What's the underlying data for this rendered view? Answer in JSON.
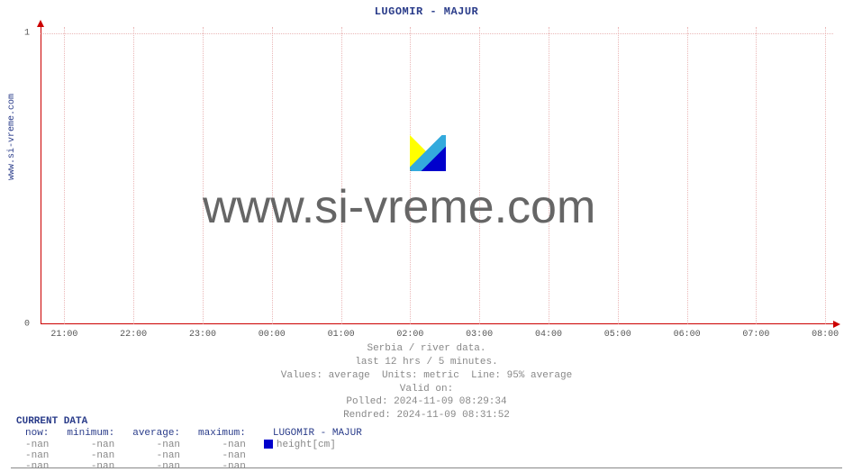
{
  "side_label": "www.si-vreme.com",
  "chart": {
    "type": "line",
    "title": "LUGOMIR -  MAJUR",
    "title_color": "#2a3c8a",
    "title_fontsize": 12,
    "background_color": "#ffffff",
    "axis_color": "#cc0000",
    "grid_color": "#d88",
    "ylim": [
      0,
      1
    ],
    "yticks": [
      0,
      1
    ],
    "ytick_labels": [
      "0",
      "1"
    ],
    "xtick_labels": [
      "21:00",
      "22:00",
      "23:00",
      "00:00",
      "01:00",
      "02:00",
      "03:00",
      "04:00",
      "05:00",
      "06:00",
      "07:00",
      "08:00"
    ],
    "xtick_count": 12,
    "series": [],
    "watermark_text": "www.si-vreme.com",
    "watermark_color": "#666666",
    "watermark_fontsize": 52,
    "logo_colors": {
      "yellow": "#ffff00",
      "blue": "#0000cc",
      "cyan": "#33aadd"
    }
  },
  "caption": {
    "line1": "Serbia / river data.",
    "line2": "last 12 hrs / 5 minutes.",
    "line3": "Values: average  Units: metric  Line: 95% average",
    "line4": "Valid on:",
    "line5": "Polled: 2024-11-09 08:29:34",
    "line6": "Rendred: 2024-11-09 08:31:52"
  },
  "table": {
    "header": "CURRENT DATA",
    "columns": [
      "now:",
      "minimum:",
      "average:",
      "maximum:"
    ],
    "series_label": "LUGOMIR -  MAJUR",
    "legend_label": "height[cm]",
    "legend_swatch_color": "#0000cc",
    "rows": [
      [
        "-nan",
        "-nan",
        "-nan",
        "-nan"
      ],
      [
        "-nan",
        "-nan",
        "-nan",
        "-nan"
      ],
      [
        "-nan",
        "-nan",
        "-nan",
        "-nan"
      ]
    ]
  }
}
